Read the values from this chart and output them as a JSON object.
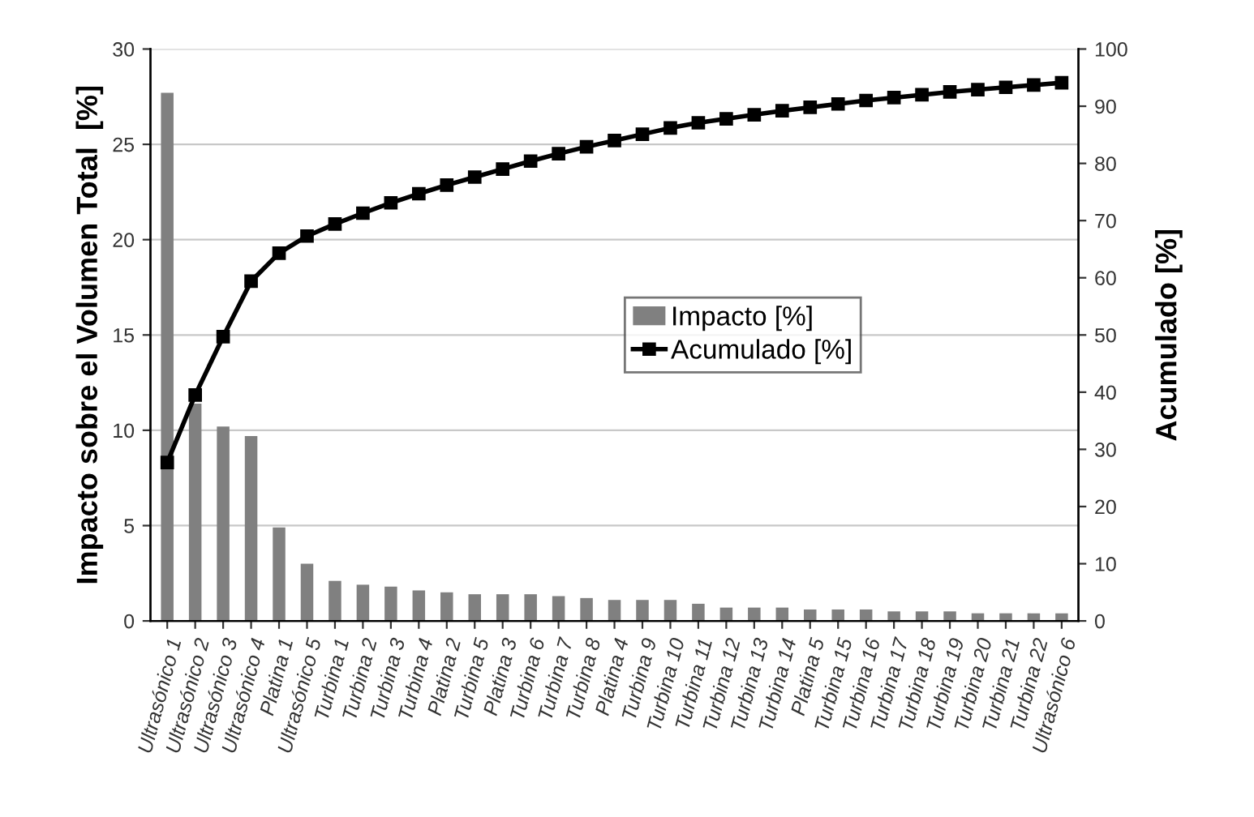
{
  "chart_data": {
    "type": "bar",
    "ylabel": "Impacto sobre el Volumen Total  [%]",
    "y2label": "Acumulado [%]",
    "categories": [
      "Ultrasónico 1",
      "Ultrasónico 2",
      "Ultrasónico 3",
      "Ultrasónico 4",
      "Platina 1",
      "Ultrasónico 5",
      "Turbina 1",
      "Turbina 2",
      "Turbina 3",
      "Turbina 4",
      "Platina 2",
      "Turbina 5",
      "Platina 3",
      "Turbina 6",
      "Turbina 7",
      "Turbina 8",
      "Platina 4",
      "Turbina 9",
      "Turbina 10",
      "Turbina 11",
      "Turbina 12",
      "Turbina 13",
      "Turbina 14",
      "Platina 5",
      "Turbina 15",
      "Turbina 16",
      "Turbina 17",
      "Turbina 18",
      "Turbina 19",
      "Turbina 20",
      "Turbina 21",
      "Turbina 22",
      "Ultrasónico 6"
    ],
    "series": [
      {
        "name": "Impacto [%]",
        "color": "#808080",
        "values": [
          27.7,
          11.4,
          10.2,
          9.7,
          4.9,
          3.0,
          2.1,
          1.9,
          1.8,
          1.6,
          1.5,
          1.4,
          1.4,
          1.4,
          1.3,
          1.2,
          1.1,
          1.1,
          1.1,
          0.9,
          0.7,
          0.7,
          0.7,
          0.6,
          0.6,
          0.6,
          0.5,
          0.5,
          0.5,
          0.4,
          0.4,
          0.4,
          0.4
        ]
      },
      {
        "name": "Acumulado [%]",
        "type": "line",
        "axis": "y2",
        "color": "#000000",
        "marker": "square",
        "values": [
          27.7,
          39.5,
          49.7,
          59.4,
          64.3,
          67.3,
          69.4,
          71.3,
          73.1,
          74.7,
          76.2,
          77.6,
          79.0,
          80.4,
          81.7,
          82.9,
          84.0,
          85.1,
          86.2,
          87.1,
          87.8,
          88.5,
          89.2,
          89.8,
          90.4,
          91.0,
          91.5,
          92.0,
          92.5,
          92.9,
          93.3,
          93.7,
          94.1
        ]
      }
    ],
    "ylim": [
      0,
      30
    ],
    "yticks": [
      0,
      5,
      10,
      15,
      20,
      25,
      30
    ],
    "y2lim": [
      0,
      100
    ],
    "y2ticks": [
      0,
      10,
      20,
      30,
      40,
      50,
      60,
      70,
      80,
      90,
      100
    ],
    "grid": "y",
    "legend": "center right"
  }
}
